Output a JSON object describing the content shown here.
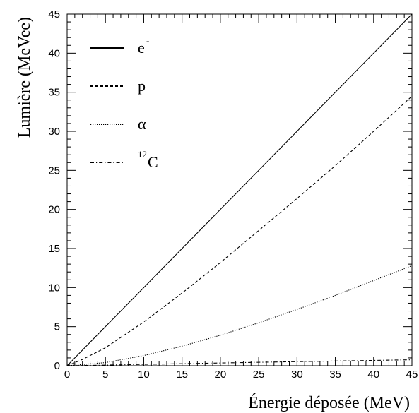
{
  "chart_data": {
    "type": "line",
    "title": "",
    "xlabel": "Énergie déposée (MeV)",
    "ylabel": "Lumière (MeVee)",
    "xlim": [
      0,
      45
    ],
    "ylim": [
      0,
      45
    ],
    "x_ticks": [
      0,
      5,
      10,
      15,
      20,
      25,
      30,
      35,
      40,
      45
    ],
    "y_ticks": [
      0,
      5,
      10,
      15,
      20,
      25,
      30,
      35,
      40,
      45
    ],
    "grid": false,
    "legend_position": "top-left",
    "series": [
      {
        "name": "e-",
        "legend_base": "e",
        "legend_sup": "-",
        "legend_pre": "",
        "line_style": "solid",
        "color": "#000000",
        "x": [
          0,
          5,
          10,
          15,
          20,
          25,
          30,
          35,
          40,
          45
        ],
        "y": [
          0,
          5,
          10,
          15,
          20,
          25,
          30,
          35,
          40,
          45
        ]
      },
      {
        "name": "p",
        "legend_base": "p",
        "legend_sup": "",
        "legend_pre": "",
        "line_style": "dashed",
        "color": "#000000",
        "x": [
          0,
          2,
          5,
          10,
          15,
          20,
          25,
          30,
          35,
          40,
          45
        ],
        "y": [
          0,
          0.8,
          2.3,
          5.6,
          9.3,
          13.2,
          17.3,
          21.4,
          25.6,
          30.0,
          34.5
        ]
      },
      {
        "name": "α",
        "legend_base": "α",
        "legend_sup": "",
        "legend_pre": "",
        "line_style": "dotted",
        "color": "#000000",
        "x": [
          0,
          5,
          10,
          15,
          20,
          25,
          30,
          35,
          40,
          45
        ],
        "y": [
          0,
          0.4,
          1.3,
          2.5,
          3.9,
          5.5,
          7.2,
          9.0,
          10.9,
          12.8
        ]
      },
      {
        "name": "12C",
        "legend_base": "C",
        "legend_sup": "",
        "legend_pre": "12",
        "line_style": "dashdot",
        "color": "#000000",
        "x": [
          0,
          5,
          10,
          15,
          20,
          25,
          30,
          35,
          40,
          45
        ],
        "y": [
          0,
          0.08,
          0.17,
          0.26,
          0.35,
          0.44,
          0.52,
          0.6,
          0.68,
          0.76
        ]
      }
    ]
  }
}
